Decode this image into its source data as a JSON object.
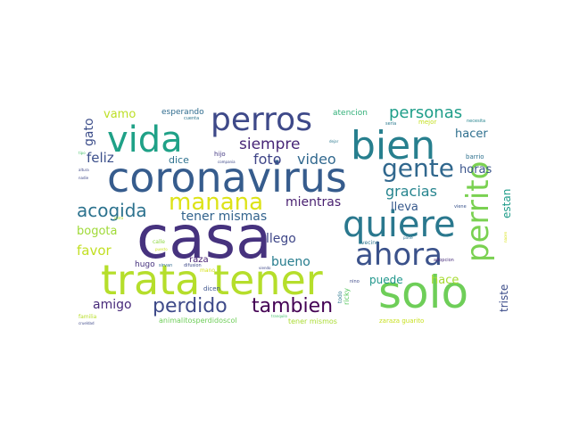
{
  "words": [
    {
      "text": "casa",
      "color": "#46327e"
    },
    {
      "text": "coronavirus",
      "color": "#365c8d"
    },
    {
      "text": "trata tener",
      "color": "#b5de2b"
    },
    {
      "text": "solo",
      "color": "#6ece58"
    },
    {
      "text": "bien",
      "color": "#277f8e"
    },
    {
      "text": "vida",
      "color": "#1fa187"
    },
    {
      "text": "quiere",
      "color": "#2a788e"
    },
    {
      "text": "perros",
      "color": "#3e4989"
    },
    {
      "text": "perrito",
      "color": "#7ad151"
    },
    {
      "text": "ahora",
      "color": "#3b528b"
    },
    {
      "text": "gente",
      "color": "#31688e"
    },
    {
      "text": "manana",
      "color": "#dde318"
    },
    {
      "text": "perdido",
      "color": "#3e4a89"
    },
    {
      "text": "tambien",
      "color": "#440154"
    },
    {
      "text": "acogida",
      "color": "#2c728e"
    },
    {
      "text": "personas",
      "color": "#1f9e89"
    },
    {
      "text": "siempre",
      "color": "#482677"
    },
    {
      "text": "gracias",
      "color": "#25848e"
    },
    {
      "text": "video",
      "color": "#31688e"
    },
    {
      "text": "foto",
      "color": "#404688"
    },
    {
      "text": "tener mismas",
      "color": "#33638d"
    },
    {
      "text": "bueno",
      "color": "#287d8e"
    },
    {
      "text": "llego",
      "color": "#3f4788"
    },
    {
      "text": "mientras",
      "color": "#481f70"
    },
    {
      "text": "amigo",
      "color": "#472a7a"
    },
    {
      "text": "favor",
      "color": "#c2df23"
    },
    {
      "text": "feliz",
      "color": "#3c508b"
    },
    {
      "text": "bogota",
      "color": "#a0da39"
    },
    {
      "text": "hacer",
      "color": "#2e6f8e"
    },
    {
      "text": "horas",
      "color": "#3a548c"
    },
    {
      "text": "lleva",
      "color": "#38598c"
    },
    {
      "text": "estan",
      "color": "#1e9c89"
    },
    {
      "text": "puede",
      "color": "#1f968b"
    },
    {
      "text": "hace",
      "color": "#a8db34"
    },
    {
      "text": "triste",
      "color": "#3d4d8a"
    },
    {
      "text": "gato",
      "color": "#3d4e8a"
    },
    {
      "text": "vamo",
      "color": "#bddf26"
    },
    {
      "text": "dice",
      "color": "#2d718e"
    },
    {
      "text": "esperando",
      "color": "#2f6c8e"
    },
    {
      "text": "atencion",
      "color": "#33b07a"
    },
    {
      "text": "raza",
      "color": "#482173"
    },
    {
      "text": "hugo",
      "color": "#46327e"
    },
    {
      "text": "ricky",
      "color": "#5cc863"
    },
    {
      "text": "todo",
      "color": "#2a778e"
    },
    {
      "text": "animalitosperdidoscol",
      "color": "#6ece58"
    },
    {
      "text": "tener mismos",
      "color": "#aadc32"
    },
    {
      "text": "zaraza guarito",
      "color": "#c8e020"
    },
    {
      "text": "dicen",
      "color": "#3b528b"
    },
    {
      "text": "familia",
      "color": "#b8de29"
    },
    {
      "text": "mejor",
      "color": "#c5e021"
    },
    {
      "text": "necesita",
      "color": "#25848e"
    },
    {
      "text": "barrio",
      "color": "#2d708e"
    },
    {
      "text": "vecino",
      "color": "#2c738e"
    },
    {
      "text": "calle",
      "color": "#8fd744"
    },
    {
      "text": "cuenta",
      "color": "#2b758e"
    },
    {
      "text": "hijo",
      "color": "#443a83"
    },
    {
      "text": "seria",
      "color": "#2a788e"
    },
    {
      "text": "mano",
      "color": "#d5e21a"
    },
    {
      "text": "difusion",
      "color": "#3e4989"
    },
    {
      "text": "sirvan",
      "color": "#2f6b8e"
    },
    {
      "text": "parte",
      "color": "#2c728e"
    },
    {
      "text": "viene",
      "color": "#3a548c"
    },
    {
      "text": "adopcion",
      "color": "#472c7a"
    },
    {
      "text": "puesto",
      "color": "#cae11f"
    },
    {
      "text": "tipo",
      "color": "#4ac16d"
    },
    {
      "text": "nadie",
      "color": "#3f4889"
    },
    {
      "text": "altura",
      "color": "#3f4889"
    },
    {
      "text": "pinta",
      "color": "#b0dd2f"
    },
    {
      "text": "viendo",
      "color": "#3e4989"
    },
    {
      "text": "compania",
      "color": "#3e4989"
    },
    {
      "text": "tranquilo",
      "color": "#4ac16d"
    },
    {
      "text": "crueldad",
      "color": "#3e4989"
    },
    {
      "text": "dejar",
      "color": "#2a788e"
    },
    {
      "text": "nacen",
      "color": "#d8e219"
    },
    {
      "text": "nino",
      "color": "#3e4989"
    }
  ]
}
